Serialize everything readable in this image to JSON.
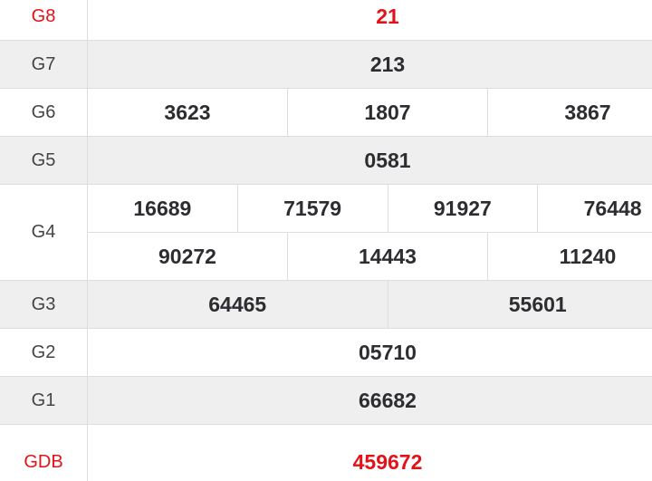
{
  "table": {
    "colors": {
      "red": "#e31219",
      "value_text": "#2d2d31",
      "label_text": "#444444",
      "alt_row_bg": "#efefef",
      "row_bg": "#ffffff",
      "border": "#dddddd"
    },
    "rows": [
      {
        "label": "G8",
        "red": true,
        "lines": [
          [
            "21"
          ]
        ]
      },
      {
        "label": "G7",
        "red": false,
        "lines": [
          [
            "213"
          ]
        ]
      },
      {
        "label": "G6",
        "red": false,
        "lines": [
          [
            "3623",
            "1807",
            "3867"
          ]
        ]
      },
      {
        "label": "G5",
        "red": false,
        "lines": [
          [
            "0581"
          ]
        ]
      },
      {
        "label": "G4",
        "red": false,
        "lines": [
          [
            "16689",
            "71579",
            "91927",
            "76448"
          ],
          [
            "90272",
            "14443",
            "11240"
          ]
        ]
      },
      {
        "label": "G3",
        "red": false,
        "lines": [
          [
            "64465",
            "55601"
          ]
        ]
      },
      {
        "label": "G2",
        "red": false,
        "lines": [
          [
            "05710"
          ]
        ]
      },
      {
        "label": "G1",
        "red": false,
        "lines": [
          [
            "66682"
          ]
        ]
      },
      {
        "label": "GDB",
        "red": true,
        "lines": [
          [
            "459672"
          ]
        ]
      }
    ]
  }
}
